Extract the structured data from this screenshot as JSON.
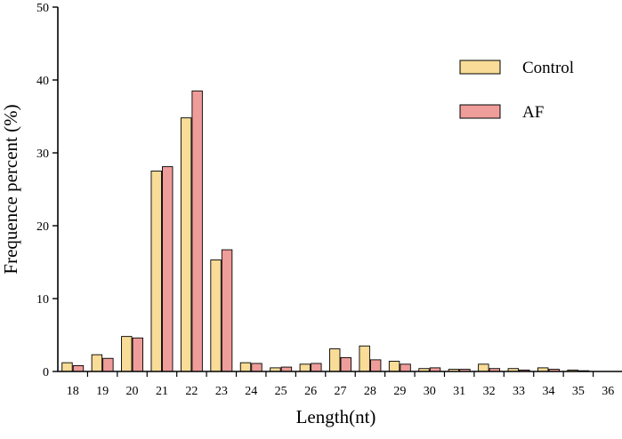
{
  "chart_data": {
    "type": "bar",
    "title": "",
    "xlabel": "Length(nt)",
    "ylabel": "Frequence percent (%)",
    "ylim": [
      0,
      50
    ],
    "yticks": [
      0,
      10,
      20,
      30,
      40,
      50
    ],
    "categories": [
      "18",
      "19",
      "20",
      "21",
      "22",
      "23",
      "24",
      "25",
      "26",
      "27",
      "28",
      "29",
      "30",
      "31",
      "32",
      "33",
      "34",
      "35",
      "36"
    ],
    "series": [
      {
        "name": "Control",
        "color": "#f8dc97",
        "values": [
          1.2,
          2.3,
          4.8,
          27.5,
          34.8,
          15.3,
          1.2,
          0.5,
          1.0,
          3.1,
          3.5,
          1.4,
          0.4,
          0.3,
          1.0,
          0.4,
          0.5,
          0.2,
          0.0
        ]
      },
      {
        "name": "AF",
        "color": "#ef9d9a",
        "values": [
          0.8,
          1.8,
          4.6,
          28.1,
          38.5,
          16.7,
          1.1,
          0.6,
          1.1,
          1.9,
          1.6,
          1.0,
          0.5,
          0.3,
          0.4,
          0.2,
          0.3,
          0.1,
          0.0
        ]
      }
    ],
    "legend": {
      "position": "top-right"
    },
    "grid": false
  }
}
